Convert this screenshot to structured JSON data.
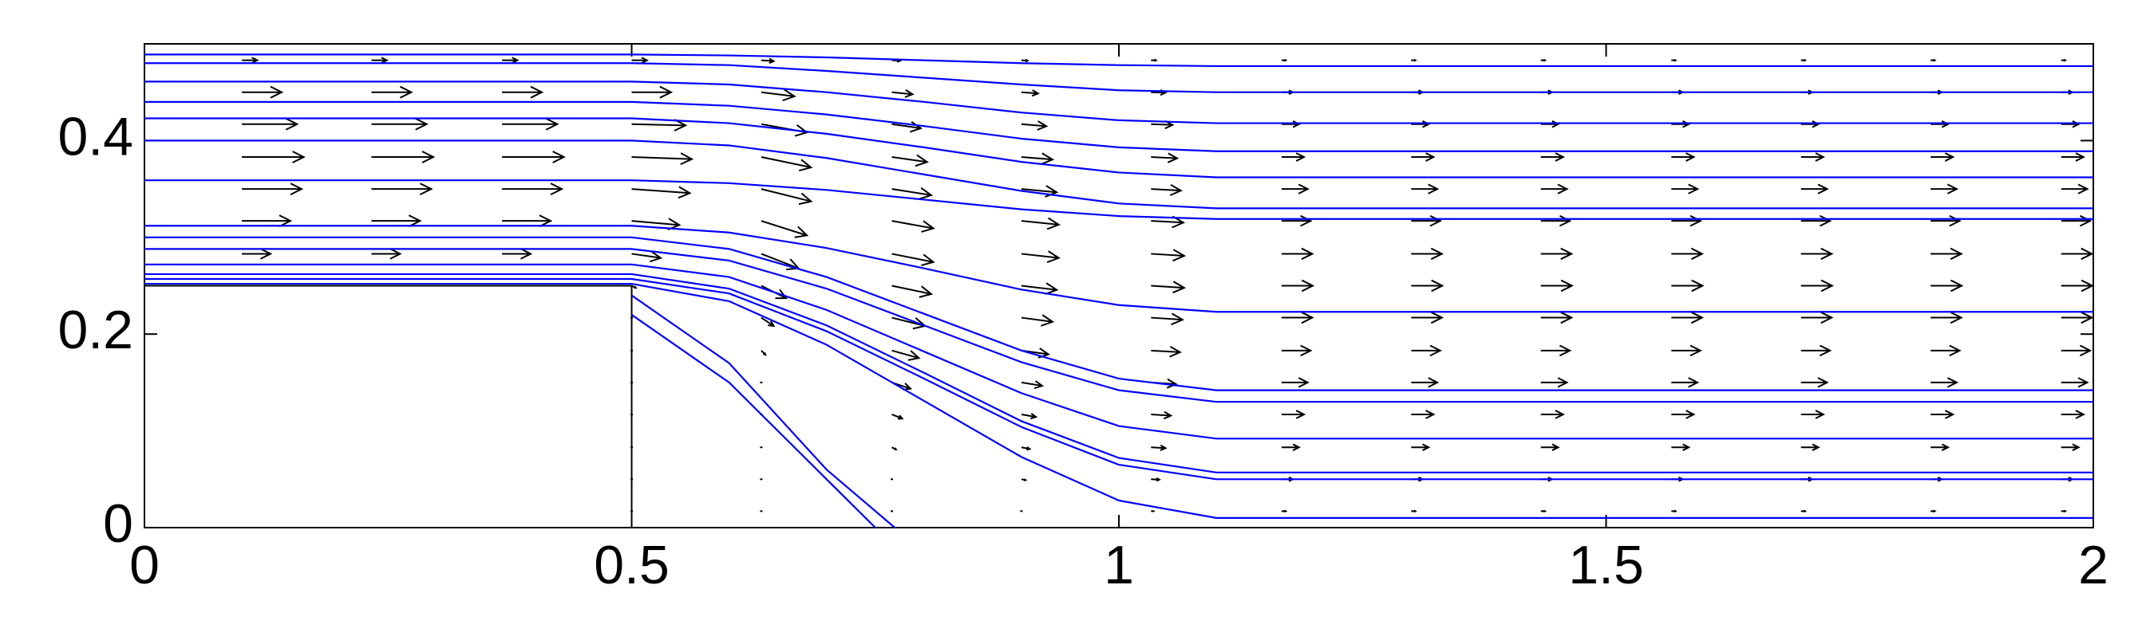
{
  "chart_data": {
    "type": "streamline",
    "color": "#0000ff",
    "arrow_color": "#000000",
    "xlim": [
      0,
      2
    ],
    "ylim": [
      0,
      0.5
    ],
    "xticks": [
      0,
      0.5,
      1,
      1.5,
      2
    ],
    "yticks": [
      0,
      0.2,
      0.4
    ],
    "step": {
      "x": 0.5,
      "y": 0.25
    },
    "series": [
      {
        "x": [
          0,
          0.5,
          0.6,
          0.7,
          0.8,
          0.9,
          1.0,
          1.1,
          2.0
        ],
        "values": [
          0.489,
          0.489,
          0.488,
          0.486,
          0.483,
          0.48,
          0.478,
          0.477,
          0.477
        ]
      },
      {
        "x": [
          0,
          0.5,
          0.6,
          0.7,
          0.8,
          0.9,
          1.0,
          1.1,
          2.0
        ],
        "values": [
          0.48,
          0.48,
          0.478,
          0.472,
          0.465,
          0.458,
          0.452,
          0.45,
          0.45
        ]
      },
      {
        "x": [
          0,
          0.5,
          0.6,
          0.7,
          0.8,
          0.9,
          1.0,
          1.1,
          2.0
        ],
        "values": [
          0.461,
          0.461,
          0.458,
          0.45,
          0.44,
          0.429,
          0.421,
          0.418,
          0.418
        ]
      },
      {
        "x": [
          0,
          0.5,
          0.6,
          0.7,
          0.8,
          0.9,
          1.0,
          1.1,
          2.0
        ],
        "values": [
          0.44,
          0.44,
          0.436,
          0.427,
          0.415,
          0.402,
          0.393,
          0.389,
          0.389
        ]
      },
      {
        "x": [
          0,
          0.5,
          0.6,
          0.7,
          0.8,
          0.9,
          1.0,
          1.1,
          2.0
        ],
        "values": [
          0.423,
          0.423,
          0.418,
          0.407,
          0.393,
          0.378,
          0.367,
          0.362,
          0.362
        ]
      },
      {
        "x": [
          0,
          0.5,
          0.6,
          0.7,
          0.8,
          0.9,
          1.0,
          1.1,
          2.0
        ],
        "values": [
          0.4,
          0.4,
          0.395,
          0.382,
          0.365,
          0.348,
          0.335,
          0.33,
          0.33
        ]
      },
      {
        "x": [
          0,
          0.5,
          0.6,
          0.7,
          0.8,
          0.9,
          1.0,
          1.1,
          2.0
        ],
        "values": [
          0.359,
          0.359,
          0.356,
          0.349,
          0.339,
          0.329,
          0.322,
          0.319,
          0.319
        ]
      },
      {
        "x": [
          0,
          0.5,
          0.6,
          0.7,
          0.8,
          0.9,
          1.0,
          1.1,
          2.0
        ],
        "values": [
          0.312,
          0.312,
          0.305,
          0.289,
          0.268,
          0.246,
          0.23,
          0.223,
          0.223
        ]
      },
      {
        "x": [
          0,
          0.5,
          0.6,
          0.7,
          0.8,
          0.9,
          1.0,
          1.1,
          2.0
        ],
        "values": [
          0.3,
          0.3,
          0.288,
          0.259,
          0.221,
          0.183,
          0.154,
          0.142,
          0.142
        ]
      },
      {
        "x": [
          0,
          0.5,
          0.6,
          0.7,
          0.8,
          0.9,
          1.0,
          1.1,
          2.0
        ],
        "values": [
          0.288,
          0.288,
          0.276,
          0.247,
          0.209,
          0.171,
          0.142,
          0.13,
          0.13
        ]
      },
      {
        "x": [
          0,
          0.5,
          0.6,
          0.7,
          0.8,
          0.9,
          1.0,
          1.1,
          2.0
        ],
        "values": [
          0.272,
          0.272,
          0.259,
          0.225,
          0.182,
          0.139,
          0.105,
          0.092,
          0.092
        ]
      },
      {
        "x": [
          0,
          0.5,
          0.6,
          0.7,
          0.8,
          0.9,
          1.0,
          1.1,
          2.0
        ],
        "values": [
          0.262,
          0.262,
          0.247,
          0.209,
          0.16,
          0.11,
          0.072,
          0.057,
          0.057
        ]
      },
      {
        "x": [
          0,
          0.5,
          0.6,
          0.7,
          0.8,
          0.9,
          1.0,
          1.1,
          2.0
        ],
        "values": [
          0.257,
          0.257,
          0.242,
          0.203,
          0.154,
          0.104,
          0.065,
          0.05,
          0.05
        ]
      },
      {
        "x": [
          0,
          0.5,
          0.6,
          0.7,
          0.8,
          0.9,
          1.0,
          1.1,
          2.0
        ],
        "values": [
          0.252,
          0.252,
          0.234,
          0.189,
          0.131,
          0.073,
          0.028,
          0.01,
          0.01
        ]
      },
      {
        "x": [
          0.5,
          0.6,
          0.7,
          0.77
        ],
        "values": [
          0.24,
          0.17,
          0.06,
          0
        ]
      },
      {
        "x": [
          0.5,
          0.6,
          0.7,
          0.75
        ],
        "values": [
          0.22,
          0.15,
          0.05,
          0
        ]
      }
    ],
    "quiver": {
      "y": [
        0.017,
        0.05,
        0.083,
        0.117,
        0.15,
        0.183,
        0.217,
        0.25,
        0.283,
        0.317,
        0.35,
        0.383,
        0.417,
        0.45,
        0.483
      ],
      "columns": [
        {
          "x": 0.1,
          "u": [
            null,
            null,
            null,
            null,
            null,
            null,
            null,
            null,
            0.69,
            1.17,
            1.44,
            1.49,
            1.33,
            0.96,
            0.37
          ],
          "v": [
            null,
            null,
            null,
            null,
            null,
            null,
            null,
            null,
            0,
            0,
            0,
            0,
            0,
            0,
            0
          ]
        },
        {
          "x": 0.233,
          "u": [
            null,
            null,
            null,
            null,
            null,
            null,
            null,
            null,
            0.69,
            1.17,
            1.44,
            1.49,
            1.33,
            0.96,
            0.37
          ],
          "v": [
            null,
            null,
            null,
            null,
            null,
            null,
            null,
            null,
            0,
            0,
            0,
            0,
            0,
            0,
            0
          ]
        },
        {
          "x": 0.367,
          "u": [
            null,
            null,
            null,
            null,
            null,
            null,
            null,
            null,
            0.69,
            1.17,
            1.44,
            1.49,
            1.33,
            0.96,
            0.37
          ],
          "v": [
            null,
            null,
            null,
            null,
            null,
            null,
            null,
            null,
            0,
            0,
            0,
            0,
            0,
            0,
            0
          ]
        },
        {
          "x": 0.5,
          "u": [
            0,
            0,
            0,
            0,
            0,
            0,
            0,
            0.1,
            0.7,
            1.15,
            1.4,
            1.45,
            1.3,
            0.95,
            0.37
          ],
          "v": [
            0,
            0,
            0,
            0,
            0,
            0,
            0,
            -0.05,
            -0.1,
            -0.1,
            -0.1,
            -0.05,
            -0.03,
            0,
            0
          ]
        },
        {
          "x": 0.633,
          "u": [
            0.02,
            0.02,
            0.02,
            0.02,
            0.02,
            0.1,
            0.3,
            0.6,
            0.9,
            1.1,
            1.2,
            1.2,
            1.1,
            0.8,
            0.3
          ],
          "v": [
            0,
            0,
            0,
            0,
            -0.02,
            -0.1,
            -0.2,
            -0.3,
            -0.35,
            -0.35,
            -0.3,
            -0.25,
            -0.2,
            -0.1,
            -0.02
          ]
        },
        {
          "x": 0.767,
          "u": [
            0.02,
            0.05,
            0.1,
            0.25,
            0.45,
            0.65,
            0.8,
            0.95,
            1.0,
            1.0,
            0.95,
            0.85,
            0.7,
            0.5,
            0.2
          ],
          "v": [
            0,
            -0.02,
            -0.05,
            -0.1,
            -0.15,
            -0.18,
            -0.2,
            -0.2,
            -0.2,
            -0.18,
            -0.15,
            -0.12,
            -0.1,
            -0.05,
            -0.01
          ]
        },
        {
          "x": 0.9,
          "u": [
            0.03,
            0.1,
            0.2,
            0.35,
            0.5,
            0.65,
            0.75,
            0.85,
            0.9,
            0.9,
            0.85,
            0.75,
            0.6,
            0.4,
            0.15
          ],
          "v": [
            0,
            -0.02,
            -0.04,
            -0.06,
            -0.08,
            -0.09,
            -0.1,
            -0.1,
            -0.1,
            -0.09,
            -0.08,
            -0.06,
            -0.05,
            -0.03,
            -0.01
          ]
        },
        {
          "x": 1.033,
          "u": [
            0.06,
            0.2,
            0.35,
            0.48,
            0.6,
            0.7,
            0.76,
            0.8,
            0.8,
            0.78,
            0.72,
            0.63,
            0.52,
            0.35,
            0.12
          ],
          "v": [
            0,
            -0.01,
            -0.02,
            -0.03,
            -0.04,
            -0.04,
            -0.05,
            -0.05,
            -0.05,
            -0.04,
            -0.04,
            -0.03,
            -0.02,
            -0.01,
            0
          ]
        },
        {
          "x": 1.167,
          "u": [
            0.1,
            0.27,
            0.42,
            0.54,
            0.63,
            0.7,
            0.74,
            0.75,
            0.74,
            0.7,
            0.63,
            0.54,
            0.42,
            0.27,
            0.1
          ],
          "v": [
            0,
            0,
            0,
            0,
            0,
            0,
            0,
            0,
            0,
            0,
            0,
            0,
            0,
            0,
            0
          ]
        },
        {
          "x": 1.3,
          "u": [
            0.1,
            0.27,
            0.42,
            0.54,
            0.63,
            0.7,
            0.74,
            0.75,
            0.74,
            0.7,
            0.63,
            0.54,
            0.42,
            0.27,
            0.1
          ],
          "v": [
            0,
            0,
            0,
            0,
            0,
            0,
            0,
            0,
            0,
            0,
            0,
            0,
            0,
            0,
            0
          ]
        },
        {
          "x": 1.433,
          "u": [
            0.1,
            0.27,
            0.42,
            0.54,
            0.63,
            0.7,
            0.74,
            0.75,
            0.74,
            0.7,
            0.63,
            0.54,
            0.42,
            0.27,
            0.1
          ],
          "v": [
            0,
            0,
            0,
            0,
            0,
            0,
            0,
            0,
            0,
            0,
            0,
            0,
            0,
            0,
            0
          ]
        },
        {
          "x": 1.567,
          "u": [
            0.1,
            0.27,
            0.42,
            0.54,
            0.63,
            0.7,
            0.74,
            0.75,
            0.74,
            0.7,
            0.63,
            0.54,
            0.42,
            0.27,
            0.1
          ],
          "v": [
            0,
            0,
            0,
            0,
            0,
            0,
            0,
            0,
            0,
            0,
            0,
            0,
            0,
            0,
            0
          ]
        },
        {
          "x": 1.7,
          "u": [
            0.1,
            0.27,
            0.42,
            0.54,
            0.63,
            0.7,
            0.74,
            0.75,
            0.74,
            0.7,
            0.63,
            0.54,
            0.42,
            0.27,
            0.1
          ],
          "v": [
            0,
            0,
            0,
            0,
            0,
            0,
            0,
            0,
            0,
            0,
            0,
            0,
            0,
            0,
            0
          ]
        },
        {
          "x": 1.833,
          "u": [
            0.1,
            0.27,
            0.42,
            0.54,
            0.63,
            0.7,
            0.74,
            0.75,
            0.74,
            0.7,
            0.63,
            0.54,
            0.42,
            0.27,
            0.1
          ],
          "v": [
            0,
            0,
            0,
            0,
            0,
            0,
            0,
            0,
            0,
            0,
            0,
            0,
            0,
            0,
            0
          ]
        },
        {
          "x": 1.967,
          "u": [
            0.1,
            0.27,
            0.42,
            0.54,
            0.63,
            0.7,
            0.74,
            0.75,
            0.74,
            0.7,
            0.63,
            0.54,
            0.42,
            0.27,
            0.1
          ],
          "v": [
            0,
            0,
            0,
            0,
            0,
            0,
            0,
            0,
            0,
            0,
            0,
            0,
            0,
            0,
            0
          ]
        }
      ]
    }
  }
}
